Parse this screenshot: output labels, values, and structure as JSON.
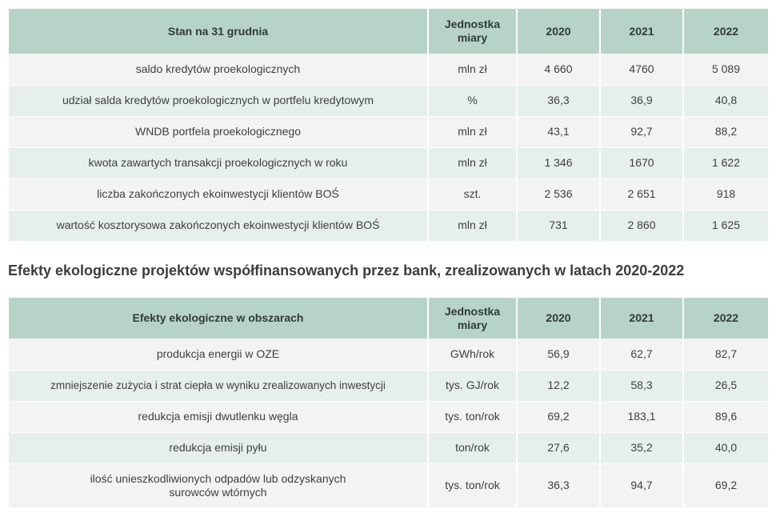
{
  "table1": {
    "headers": {
      "label": "Stan na 31 grudnia",
      "unit": "Jednostka\nmiary",
      "y2020": "2020",
      "y2021": "2021",
      "y2022": "2022"
    },
    "rows": [
      {
        "label": "saldo kredytów proekologicznych",
        "unit": "mln zł",
        "v2020": "4 660",
        "v2021": "4760",
        "v2022": "5 089"
      },
      {
        "label": "udział salda kredytów proekologicznych w portfelu kredytowym",
        "unit": "%",
        "v2020": "36,3",
        "v2021": "36,9",
        "v2022": "40,8"
      },
      {
        "label": "WNDB portfela proekologicznego",
        "unit": "mln zł",
        "v2020": "43,1",
        "v2021": "92,7",
        "v2022": "88,2"
      },
      {
        "label": "kwota zawartych transakcji proekologicznych w roku",
        "unit": "mln zł",
        "v2020": "1 346",
        "v2021": "1670",
        "v2022": "1 622"
      },
      {
        "label": "liczba zakończonych ekoinwestycji klientów BOŚ",
        "unit": "szt.",
        "v2020": "2 536",
        "v2021": "2 651",
        "v2022": "918"
      },
      {
        "label": "wartość kosztorysowa zakończonych ekoinwestycji klientów BOŚ",
        "unit": "mln zł",
        "v2020": "731",
        "v2021": "2 860",
        "v2022": "1 625"
      }
    ]
  },
  "section_heading": "Efekty ekologiczne projektów współfinansowanych przez bank, zrealizowanych w latach 2020-2022",
  "table2": {
    "headers": {
      "label": "Efekty ekologiczne w obszarach",
      "unit": "Jednostka\nmiary",
      "y2020": "2020",
      "y2021": "2021",
      "y2022": "2022"
    },
    "rows": [
      {
        "label": "produkcja energii w OZE",
        "unit": "GWh/rok",
        "v2020": "56,9",
        "v2021": "62,7",
        "v2022": "82,7"
      },
      {
        "label": "zmniejszenie zużycia i strat ciepła w wyniku zrealizowanych inwestycji",
        "unit": "tys. GJ/rok",
        "v2020": "12,2",
        "v2021": "58,3",
        "v2022": "26,5"
      },
      {
        "label": "redukcja emisji dwutlenku węgla",
        "unit": "tys. ton/rok",
        "v2020": "69,2",
        "v2021": "183,1",
        "v2022": "89,6"
      },
      {
        "label": "redukcja emisji pyłu",
        "unit": "ton/rok",
        "v2020": "27,6",
        "v2021": "35,2",
        "v2022": "40,0"
      },
      {
        "label": "ilość unieszkodliwionych odpadów lub odzyskanych\nsurowców wtórnych",
        "unit": "tys. ton/rok",
        "v2020": "36,3",
        "v2021": "94,7",
        "v2022": "69,2"
      }
    ]
  }
}
